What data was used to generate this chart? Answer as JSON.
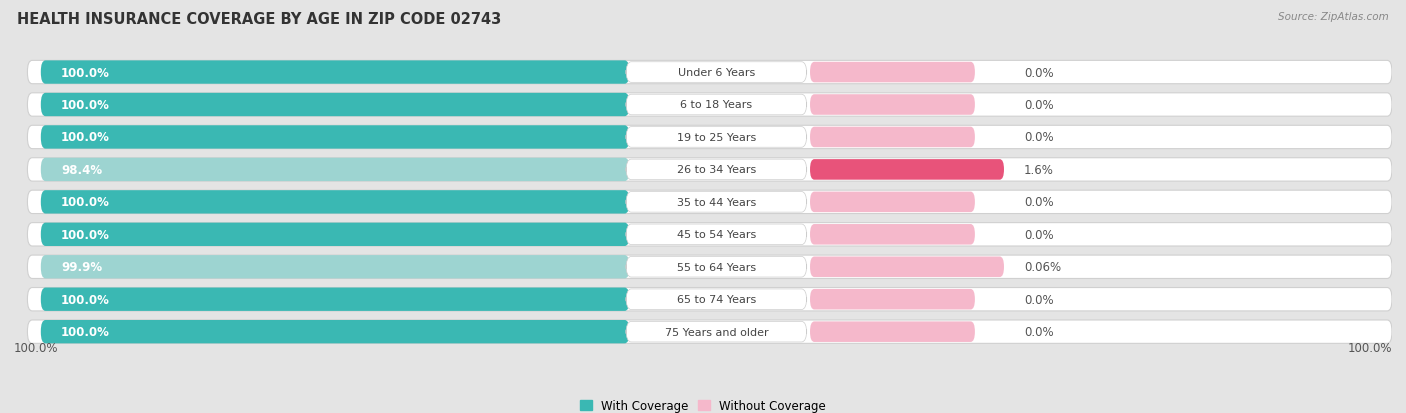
{
  "title": "HEALTH INSURANCE COVERAGE BY AGE IN ZIP CODE 02743",
  "source": "Source: ZipAtlas.com",
  "categories": [
    "Under 6 Years",
    "6 to 18 Years",
    "19 to 25 Years",
    "26 to 34 Years",
    "35 to 44 Years",
    "45 to 54 Years",
    "55 to 64 Years",
    "65 to 74 Years",
    "75 Years and older"
  ],
  "with_coverage": [
    100.0,
    100.0,
    100.0,
    98.4,
    100.0,
    100.0,
    99.9,
    100.0,
    100.0
  ],
  "without_coverage": [
    0.0,
    0.0,
    0.0,
    1.6,
    0.0,
    0.0,
    0.06,
    0.0,
    0.0
  ],
  "with_coverage_labels": [
    "100.0%",
    "100.0%",
    "100.0%",
    "98.4%",
    "100.0%",
    "100.0%",
    "99.9%",
    "100.0%",
    "100.0%"
  ],
  "without_coverage_labels": [
    "0.0%",
    "0.0%",
    "0.0%",
    "1.6%",
    "0.0%",
    "0.0%",
    "0.06%",
    "0.0%",
    "0.0%"
  ],
  "color_with": "#3ab8b3",
  "color_with_light": "#9dd4d1",
  "color_without_light": "#f5b8cb",
  "color_without_dark": "#e8537a",
  "bg_color": "#e8e8e8",
  "bar_bg": "#f5f5f5",
  "row_bg": "#efefef",
  "legend_with": "With Coverage",
  "legend_without": "Without Coverage",
  "axis_label_left": "100.0%",
  "axis_label_right": "100.0%"
}
